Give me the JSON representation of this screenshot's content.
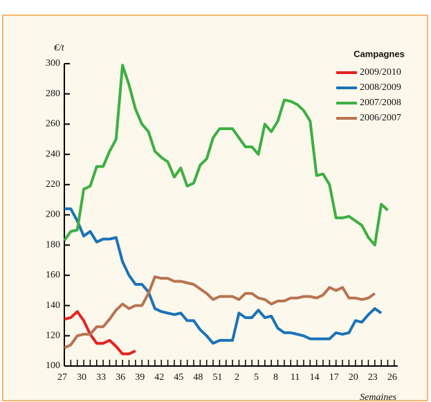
{
  "chart_data": {
    "type": "line",
    "y_label": "€/t",
    "x_label": "Semaines",
    "legend_title": "Campagnes",
    "categories": [
      "27",
      null,
      null,
      "30",
      null,
      null,
      "33",
      null,
      null,
      "36",
      null,
      null,
      "39",
      null,
      null,
      "42",
      null,
      null,
      "45",
      null,
      null,
      "48",
      null,
      null,
      "51",
      null,
      null,
      "2",
      null,
      null,
      "5",
      null,
      null,
      "8",
      null,
      null,
      "11",
      null,
      null,
      "14",
      null,
      null,
      "17",
      null,
      null,
      "20",
      null,
      null,
      "23",
      null,
      null,
      "26"
    ],
    "ylim": [
      100,
      300
    ],
    "yticks": [
      100,
      120,
      140,
      160,
      180,
      200,
      220,
      240,
      260,
      280,
      300
    ],
    "legend": "top-right",
    "series": [
      {
        "name": "2009/2010",
        "color": "#e42320",
        "values": [
          131,
          132,
          136,
          130,
          121,
          115,
          115,
          117,
          113,
          108,
          108,
          110,
          null,
          null,
          null,
          null,
          null,
          null,
          null,
          null,
          null,
          null,
          null,
          null,
          null,
          null,
          null,
          null,
          null,
          null,
          null,
          null,
          null,
          null,
          null,
          null,
          null,
          null,
          null,
          null,
          null,
          null,
          null,
          null,
          null,
          null,
          null,
          null,
          null,
          null,
          null,
          null
        ]
      },
      {
        "name": "2008/2009",
        "color": "#1a73b8",
        "values": [
          204,
          204,
          196,
          186,
          189,
          182,
          184,
          184,
          185,
          169,
          160,
          154,
          154,
          149,
          138,
          136,
          135,
          134,
          135,
          130,
          130,
          124,
          120,
          115,
          117,
          117,
          117,
          135,
          132,
          132,
          137,
          132,
          133,
          125,
          122,
          122,
          121,
          120,
          118,
          118,
          118,
          118,
          122,
          121,
          122,
          130,
          129,
          134,
          138,
          135,
          null,
          null
        ]
      },
      {
        "name": "2007/2008",
        "color": "#3cb043",
        "values": [
          183,
          189,
          190,
          217,
          219,
          232,
          232,
          242,
          250,
          299,
          286,
          270,
          260,
          255,
          242,
          238,
          235,
          225,
          231,
          219,
          221,
          233,
          237,
          251,
          257,
          257,
          257,
          251,
          245,
          245,
          240,
          260,
          255,
          262,
          276,
          275,
          273,
          269,
          262,
          226,
          227,
          220,
          198,
          198,
          199,
          196,
          193,
          185,
          180,
          207,
          203,
          null
        ]
      },
      {
        "name": "2006/2007",
        "color": "#b87352",
        "values": [
          112,
          114,
          120,
          121,
          121,
          126,
          126,
          131,
          137,
          141,
          138,
          140,
          140,
          148,
          159,
          158,
          158,
          156,
          156,
          155,
          154,
          151,
          148,
          144,
          146,
          146,
          146,
          144,
          148,
          148,
          145,
          144,
          141,
          143,
          143,
          145,
          145,
          146,
          146,
          145,
          147,
          152,
          150,
          152,
          145,
          145,
          144,
          145,
          148,
          null,
          null,
          null
        ]
      }
    ]
  }
}
